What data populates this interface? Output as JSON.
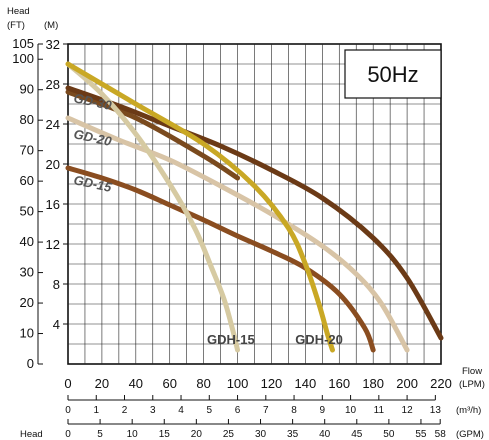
{
  "chart_data": {
    "type": "line",
    "annotation_box": "50Hz",
    "y_left_title": "Head",
    "y_left_unit_ft": "(FT)",
    "y_left_unit_m": "(M)",
    "x_title": "Flow",
    "x_unit_lpm": "(LPM)",
    "x_unit_m3h": "(m³/h)",
    "x_unit_gpm": "(GPM)",
    "bottom_left_label": "Head",
    "ft_ticks": [
      "105",
      "100",
      "90",
      "80",
      "70",
      "60",
      "50",
      "40",
      "30",
      "20",
      "10",
      "0"
    ],
    "ft_tick_values": [
      105,
      100,
      90,
      80,
      70,
      60,
      50,
      40,
      30,
      20,
      10,
      0
    ],
    "m_ticks": [
      "32",
      "28",
      "24",
      "20",
      "16",
      "12",
      "8",
      "4"
    ],
    "m_tick_values": [
      32,
      28,
      24,
      20,
      16,
      12,
      8,
      4
    ],
    "lpm_ticks": [
      "0",
      "20",
      "40",
      "60",
      "80",
      "100",
      "120",
      "140",
      "160",
      "180",
      "200",
      "220"
    ],
    "lpm_tick_values": [
      0,
      20,
      40,
      60,
      80,
      100,
      120,
      140,
      160,
      180,
      200,
      220
    ],
    "m3h_ticks": [
      "0",
      "1",
      "2",
      "3",
      "4",
      "5",
      "6",
      "7",
      "8",
      "9",
      "10",
      "11",
      "12",
      "13"
    ],
    "m3h_tick_values": [
      0,
      1,
      2,
      3,
      4,
      5,
      6,
      7,
      8,
      9,
      10,
      11,
      12,
      13
    ],
    "gpm_ticks": [
      "0",
      "5",
      "10",
      "15",
      "20",
      "25",
      "30",
      "35",
      "40",
      "45",
      "50",
      "55",
      "58"
    ],
    "gpm_tick_values": [
      0,
      5,
      10,
      15,
      20,
      25,
      30,
      35,
      40,
      45,
      50,
      55,
      58
    ],
    "xlim": [
      0,
      220
    ],
    "ylim_m": [
      0,
      32
    ],
    "colors": {
      "GD-30": "#6b3a16",
      "GD-20": "#d8c4a6",
      "GD-15": "#8a4d20",
      "GDH-15": "#d6caa2",
      "GDH-20": "#c9a825",
      "GDH-20b": "#7a4a1e"
    },
    "series": [
      {
        "name": "GD-30",
        "color_key": "GD-30",
        "x": [
          0,
          30,
          60,
          90,
          120,
          150,
          180,
          200,
          220
        ],
        "y": [
          27.6,
          25.8,
          23.8,
          21.8,
          19.4,
          16.6,
          12.6,
          8.6,
          2.6
        ]
      },
      {
        "name": "GD-20",
        "color_key": "GD-20",
        "x": [
          0,
          30,
          60,
          90,
          120,
          150,
          170,
          185,
          200
        ],
        "y": [
          24.6,
          22.4,
          20.4,
          17.8,
          15.0,
          11.8,
          9.0,
          6.0,
          1.4
        ]
      },
      {
        "name": "GD-15",
        "color_key": "GD-15",
        "x": [
          0,
          20,
          40,
          60,
          80,
          100,
          120,
          140,
          160,
          175,
          180
        ],
        "y": [
          19.6,
          18.6,
          17.4,
          15.9,
          14.4,
          12.8,
          11.3,
          9.6,
          7.0,
          3.6,
          1.4
        ]
      },
      {
        "name": "GDH-15",
        "color_key": "GDH-15",
        "x": [
          0,
          20,
          40,
          60,
          75,
          85,
          92,
          97,
          100
        ],
        "y": [
          30.0,
          27.0,
          23.0,
          18.0,
          13.5,
          9.5,
          6.5,
          3.5,
          1.4
        ]
      },
      {
        "name": "GDH-20",
        "color_key": "GDH-20",
        "x": [
          0,
          40,
          80,
          110,
          130,
          140,
          148,
          153,
          156
        ],
        "y": [
          30.0,
          26.0,
          22.0,
          17.8,
          13.6,
          10.0,
          6.0,
          3.0,
          1.4
        ]
      },
      {
        "name": "",
        "color_key": "GDH-20b",
        "x": [
          0,
          40,
          80,
          100
        ],
        "y": [
          27.2,
          24.6,
          20.8,
          18.6
        ]
      }
    ],
    "curve_labels": [
      {
        "text": "GD-30",
        "x": 0,
        "y": 26.2
      },
      {
        "text": "GD-20",
        "x": 0,
        "y": 22.6
      },
      {
        "text": "GD-15",
        "x": 0,
        "y": 18.0
      }
    ],
    "model_labels": [
      {
        "text": "GDH-15",
        "x": 82,
        "y": 2.4
      },
      {
        "text": "GDH-20",
        "x": 134,
        "y": 2.4
      }
    ]
  }
}
